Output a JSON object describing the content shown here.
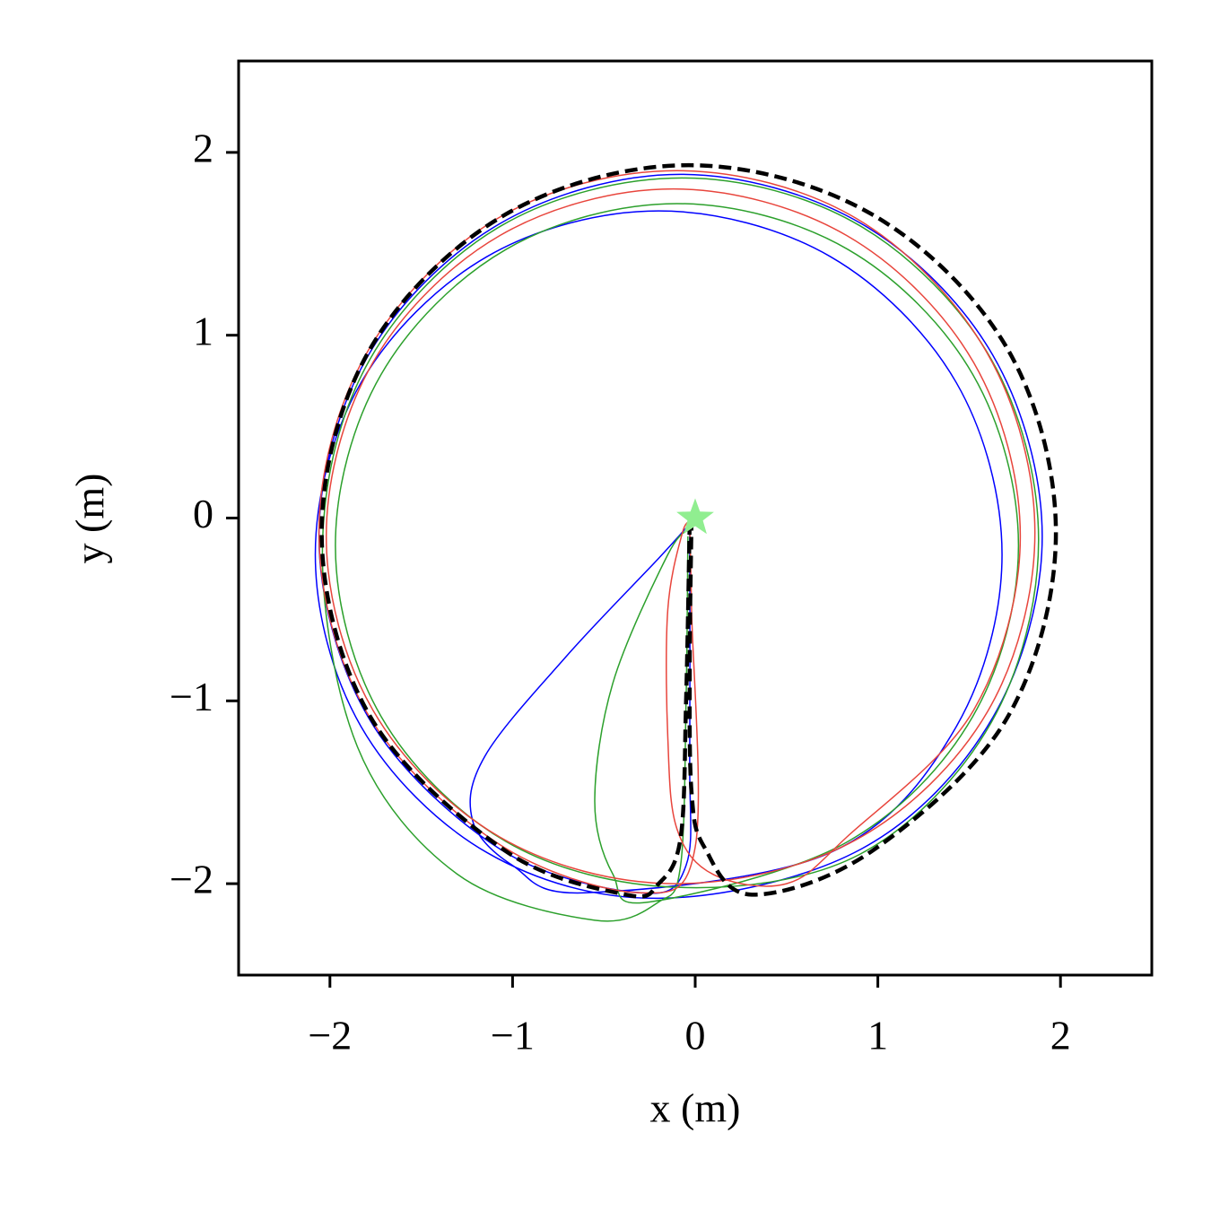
{
  "chart_data": {
    "type": "line",
    "xlabel": "x (m)",
    "ylabel": "y (m)",
    "xlim": [
      -2.5,
      2.5
    ],
    "ylim": [
      -2.5,
      2.5
    ],
    "xticks": [
      {
        "value": -2,
        "label": "−2"
      },
      {
        "value": -1,
        "label": "−1"
      },
      0,
      1,
      2
    ],
    "yticks": [
      {
        "value": -2,
        "label": "−2"
      },
      {
        "value": -1,
        "label": "−1"
      },
      0,
      1,
      2
    ],
    "grid": false,
    "series": [
      {
        "color": "#0000ff",
        "linestyle": "solid",
        "linewidth": 1.5,
        "x": [
          -0.02,
          -0.2,
          -0.7,
          -1.15,
          -1.22,
          -1.0,
          -0.6,
          0.74,
          1.43,
          1.68,
          1.43,
          0.74,
          -0.2,
          -1.14,
          -1.83,
          -2.08,
          -1.83,
          -1.14,
          -0.2,
          0.91,
          1.63,
          1.9,
          1.63,
          0.91,
          -0.08,
          -1.07,
          -1.79,
          -2.06,
          -1.79,
          -1.07,
          -0.3,
          -0.05,
          -0.03,
          -0.03
        ],
        "y": [
          -0.02,
          -0.22,
          -0.75,
          -1.3,
          -1.65,
          -1.9,
          -2.05,
          -1.83,
          -1.14,
          -0.2,
          0.74,
          1.43,
          1.68,
          1.43,
          0.74,
          -0.2,
          -1.14,
          -1.83,
          -2.08,
          -1.81,
          -1.09,
          -0.1,
          0.89,
          1.61,
          1.88,
          1.61,
          0.89,
          -0.1,
          -1.09,
          -1.81,
          -2.05,
          -1.9,
          -1.3,
          -0.05
        ]
      },
      {
        "color": "#2ca02c",
        "linestyle": "solid",
        "linewidth": 1.5,
        "x": [
          -0.02,
          -0.15,
          -0.45,
          -0.55,
          -0.45,
          -0.25,
          0.835,
          1.52,
          1.77,
          1.52,
          0.835,
          -0.1,
          -1.035,
          -1.72,
          -1.97,
          -1.72,
          -1.035,
          -0.1,
          0.9,
          1.62,
          1.88,
          1.62,
          0.9,
          -0.07,
          -1.06,
          -1.78,
          -2.04,
          -1.85,
          -1.3,
          -0.55,
          -0.2,
          -0.08,
          -0.05,
          -0.04
        ],
        "y": [
          -0.05,
          -0.2,
          -0.9,
          -1.55,
          -1.95,
          -2.1,
          -1.77,
          -1.085,
          -0.15,
          0.785,
          1.47,
          1.72,
          1.47,
          0.785,
          -0.15,
          -1.085,
          -1.77,
          -2.02,
          -1.84,
          -1.12,
          -0.12,
          0.87,
          1.6,
          1.86,
          1.6,
          0.87,
          -0.12,
          -1.25,
          -1.95,
          -2.2,
          -2.1,
          -1.9,
          -1.0,
          -0.1
        ]
      },
      {
        "color": "#e8453c",
        "linestyle": "solid",
        "linewidth": 1.5,
        "x": [
          -0.02,
          -0.07,
          -0.15,
          -0.15,
          -0.1,
          0.1,
          0.5,
          0.83,
          1.525,
          1.78,
          1.525,
          0.83,
          -0.12,
          -1.07,
          -1.765,
          -2.02,
          -1.765,
          -1.07,
          -0.12,
          0.88,
          1.6,
          1.86,
          1.6,
          0.88,
          -0.1,
          -1.08,
          -1.8,
          -2.06,
          -1.8,
          -1.08,
          -0.3,
          0.0,
          -0.02,
          -0.03
        ],
        "y": [
          -0.02,
          -0.08,
          -0.5,
          -1.2,
          -1.7,
          -1.95,
          -2.0,
          -1.745,
          -1.05,
          -0.1,
          0.85,
          1.545,
          1.8,
          1.545,
          0.85,
          -0.1,
          -1.05,
          -1.745,
          -2.0,
          -1.76,
          -1.06,
          -0.08,
          0.9,
          1.64,
          1.9,
          1.64,
          0.9,
          -0.08,
          -1.06,
          -1.78,
          -2.05,
          -1.8,
          -0.5,
          -0.05
        ]
      },
      {
        "color": "#000000",
        "linestyle": "dashed",
        "linewidth": 4.5,
        "x": [
          -0.02,
          -0.03,
          -0.02,
          0.05,
          0.31,
          0.97,
          1.71,
          1.975,
          1.71,
          0.97,
          -0.035,
          -1.04,
          -1.78,
          -2.045,
          -1.78,
          -1.04,
          -0.38,
          -0.2,
          -0.08,
          -0.05,
          -0.03
        ],
        "y": [
          0.0,
          -0.8,
          -1.5,
          -1.8,
          -2.06,
          -1.82,
          -1.09,
          -0.08,
          0.925,
          1.66,
          1.93,
          1.66,
          0.925,
          -0.08,
          -1.085,
          -1.82,
          -2.06,
          -2.0,
          -1.75,
          -1.0,
          -0.02
        ]
      },
      {
        "color": "#90ee90",
        "linestyle": "none",
        "marker": "star",
        "x": [
          0
        ],
        "y": [
          0
        ]
      }
    ]
  }
}
